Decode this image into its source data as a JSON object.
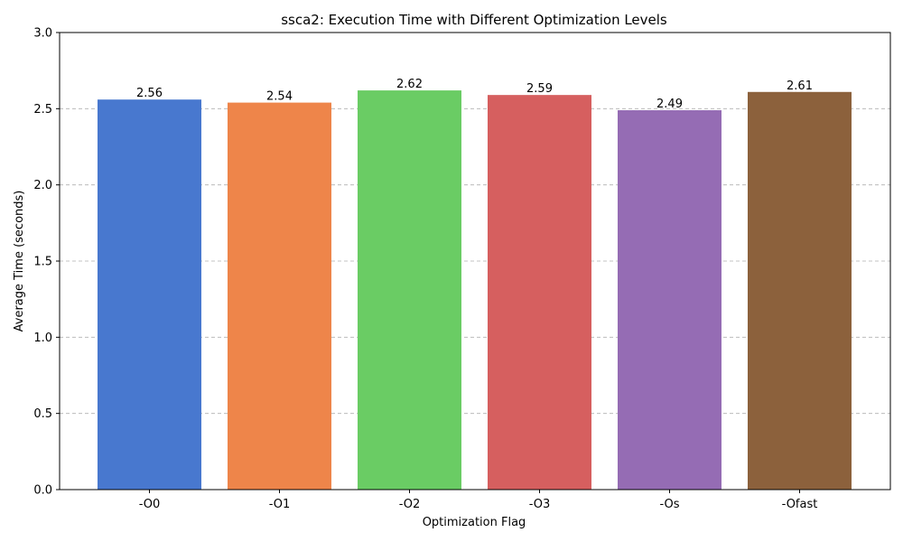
{
  "chart_data": {
    "type": "bar",
    "title": "ssca2: Execution Time with Different Optimization Levels",
    "xlabel": "Optimization Flag",
    "ylabel": "Average Time (seconds)",
    "categories": [
      "-O0",
      "-O1",
      "-O2",
      "-O3",
      "-Os",
      "-Ofast"
    ],
    "values": [
      2.56,
      2.54,
      2.62,
      2.59,
      2.49,
      2.61
    ],
    "value_labels": [
      "2.56",
      "2.54",
      "2.62",
      "2.59",
      "2.49",
      "2.61"
    ],
    "colors": [
      "#4878cf",
      "#ee854a",
      "#6acc64",
      "#d65f5f",
      "#956cb4",
      "#8c613c"
    ],
    "ylim": [
      0,
      3.0
    ],
    "yticks": [
      "0.0",
      "0.5",
      "1.0",
      "1.5",
      "2.0",
      "2.5",
      "3.0"
    ],
    "grid": "y-dashed",
    "legend": "none"
  }
}
